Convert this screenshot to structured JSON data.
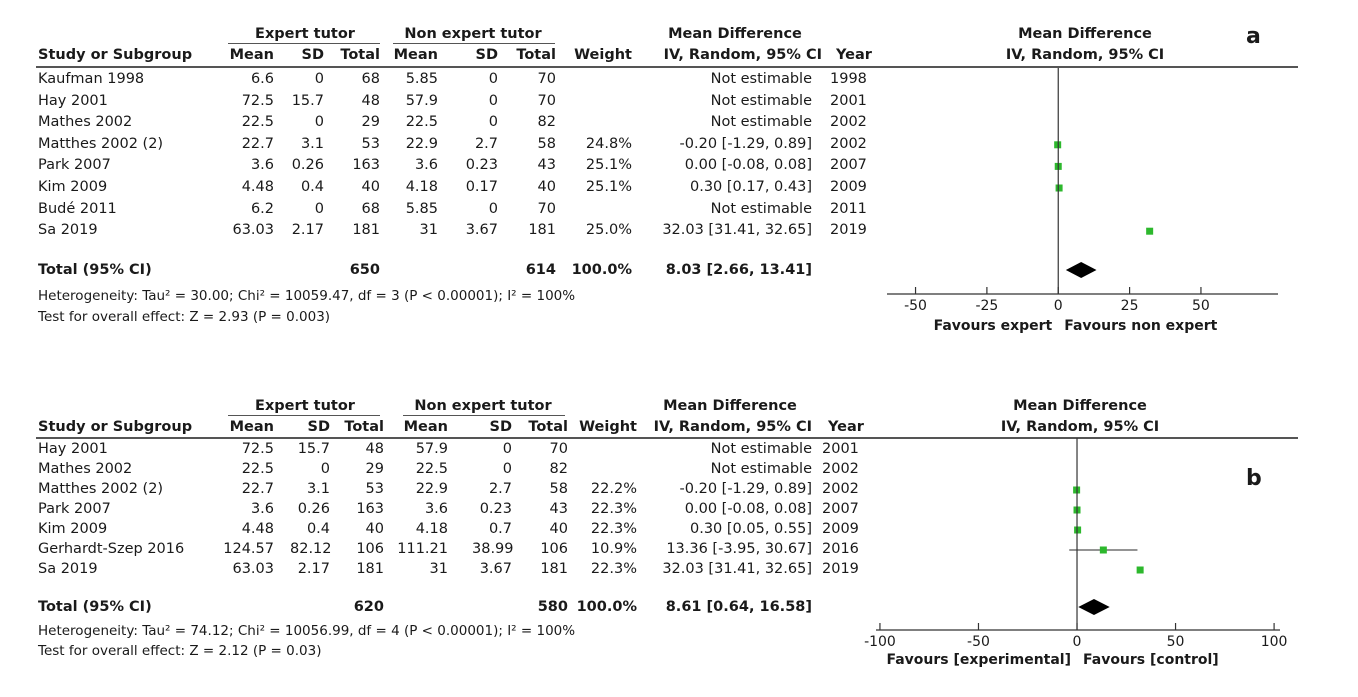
{
  "chart_data": [
    {
      "type": "forest",
      "panel_label": "a",
      "headers": {
        "group1": "Expert tutor",
        "group2": "Non expert tutor",
        "effect_title": "Mean Difference",
        "effect_sub": "IV, Random, 95% CI",
        "study": "Study or Subgroup",
        "mean": "Mean",
        "sd": "SD",
        "total": "Total",
        "weight": "Weight",
        "year": "Year",
        "plot_title": "Mean Difference",
        "plot_sub": "IV, Random, 95% CI"
      },
      "studies": [
        {
          "name": "Kaufman 1998",
          "mean1": "6.6",
          "sd1": "0",
          "n1": "68",
          "mean2": "5.85",
          "sd2": "0",
          "n2": "70",
          "weight": "",
          "ci": "Not estimable",
          "year": "1998",
          "md": null,
          "lo": null,
          "hi": null
        },
        {
          "name": "Hay 2001",
          "mean1": "72.5",
          "sd1": "15.7",
          "n1": "48",
          "mean2": "57.9",
          "sd2": "0",
          "n2": "70",
          "weight": "",
          "ci": "Not estimable",
          "year": "2001",
          "md": null,
          "lo": null,
          "hi": null
        },
        {
          "name": "Mathes 2002",
          "mean1": "22.5",
          "sd1": "0",
          "n1": "29",
          "mean2": "22.5",
          "sd2": "0",
          "n2": "82",
          "weight": "",
          "ci": "Not estimable",
          "year": "2002",
          "md": null,
          "lo": null,
          "hi": null
        },
        {
          "name": "Matthes 2002 (2)",
          "mean1": "22.7",
          "sd1": "3.1",
          "n1": "53",
          "mean2": "22.9",
          "sd2": "2.7",
          "n2": "58",
          "weight": "24.8%",
          "ci": "-0.20 [-1.29, 0.89]",
          "year": "2002",
          "md": -0.2,
          "lo": -1.29,
          "hi": 0.89
        },
        {
          "name": "Park 2007",
          "mean1": "3.6",
          "sd1": "0.26",
          "n1": "163",
          "mean2": "3.6",
          "sd2": "0.23",
          "n2": "43",
          "weight": "25.1%",
          "ci": "0.00 [-0.08, 0.08]",
          "year": "2007",
          "md": 0.0,
          "lo": -0.08,
          "hi": 0.08
        },
        {
          "name": "Kim 2009",
          "mean1": "4.48",
          "sd1": "0.4",
          "n1": "40",
          "mean2": "4.18",
          "sd2": "0.17",
          "n2": "40",
          "weight": "25.1%",
          "ci": "0.30 [0.17, 0.43]",
          "year": "2009",
          "md": 0.3,
          "lo": 0.17,
          "hi": 0.43
        },
        {
          "name": "Budé 2011",
          "mean1": "6.2",
          "sd1": "0",
          "n1": "68",
          "mean2": "5.85",
          "sd2": "0",
          "n2": "70",
          "weight": "",
          "ci": "Not estimable",
          "year": "2011",
          "md": null,
          "lo": null,
          "hi": null
        },
        {
          "name": "Sa 2019",
          "mean1": "63.03",
          "sd1": "2.17",
          "n1": "181",
          "mean2": "31",
          "sd2": "3.67",
          "n2": "181",
          "weight": "25.0%",
          "ci": "32.03 [31.41, 32.65]",
          "year": "2019",
          "md": 32.03,
          "lo": 31.41,
          "hi": 32.65
        }
      ],
      "total": {
        "label": "Total (95% CI)",
        "n1": "650",
        "n2": "614",
        "weight": "100.0%",
        "ci": "8.03 [2.66, 13.41]",
        "md": 8.03,
        "lo": 2.66,
        "hi": 13.41
      },
      "heterogeneity": "Heterogeneity: Tau² = 30.00; Chi² = 10059.47, df = 3 (P < 0.00001); I² = 100%",
      "overall_effect": "Test for overall effect: Z = 2.93 (P = 0.003)",
      "xlim": [
        -60,
        77
      ],
      "ticks": [
        {
          "v": -50,
          "label": "-50"
        },
        {
          "v": -25,
          "label": "-25"
        },
        {
          "v": 0,
          "label": "0"
        },
        {
          "v": 25,
          "label": "25"
        },
        {
          "v": 50,
          "label": "50"
        }
      ],
      "favours_left": "Favours expert",
      "favours_right": "Favours non expert",
      "marker_color": "#2db82d"
    },
    {
      "type": "forest",
      "panel_label": "b",
      "headers": {
        "group1": "Expert tutor",
        "group2": "Non expert tutor",
        "effect_title": "Mean Difference",
        "effect_sub": "IV, Random, 95% CI",
        "study": "Study or Subgroup",
        "mean": "Mean",
        "sd": "SD",
        "total": "Total",
        "weight": "Weight",
        "year": "Year",
        "plot_title": "Mean Difference",
        "plot_sub": "IV, Random, 95% CI"
      },
      "studies": [
        {
          "name": "Hay 2001",
          "mean1": "72.5",
          "sd1": "15.7",
          "n1": "48",
          "mean2": "57.9",
          "sd2": "0",
          "n2": "70",
          "weight": "",
          "ci": "Not estimable",
          "year": "2001",
          "md": null,
          "lo": null,
          "hi": null
        },
        {
          "name": "Mathes 2002",
          "mean1": "22.5",
          "sd1": "0",
          "n1": "29",
          "mean2": "22.5",
          "sd2": "0",
          "n2": "82",
          "weight": "",
          "ci": "Not estimable",
          "year": "2002",
          "md": null,
          "lo": null,
          "hi": null
        },
        {
          "name": "Matthes 2002 (2)",
          "mean1": "22.7",
          "sd1": "3.1",
          "n1": "53",
          "mean2": "22.9",
          "sd2": "2.7",
          "n2": "58",
          "weight": "22.2%",
          "ci": "-0.20 [-1.29, 0.89]",
          "year": "2002",
          "md": -0.2,
          "lo": -1.29,
          "hi": 0.89
        },
        {
          "name": "Park 2007",
          "mean1": "3.6",
          "sd1": "0.26",
          "n1": "163",
          "mean2": "3.6",
          "sd2": "0.23",
          "n2": "43",
          "weight": "22.3%",
          "ci": "0.00 [-0.08, 0.08]",
          "year": "2007",
          "md": 0.0,
          "lo": -0.08,
          "hi": 0.08
        },
        {
          "name": "Kim 2009",
          "mean1": "4.48",
          "sd1": "0.4",
          "n1": "40",
          "mean2": "4.18",
          "sd2": "0.7",
          "n2": "40",
          "weight": "22.3%",
          "ci": "0.30 [0.05, 0.55]",
          "year": "2009",
          "md": 0.3,
          "lo": 0.05,
          "hi": 0.55
        },
        {
          "name": "Gerhardt-Szep 2016",
          "mean1": "124.57",
          "sd1": "82.12",
          "n1": "106",
          "mean2": "111.21",
          "sd2": "38.99",
          "n2": "106",
          "weight": "10.9%",
          "ci": "13.36 [-3.95, 30.67]",
          "year": "2016",
          "md": 13.36,
          "lo": -3.95,
          "hi": 30.67
        },
        {
          "name": "Sa 2019",
          "mean1": "63.03",
          "sd1": "2.17",
          "n1": "181",
          "mean2": "31",
          "sd2": "3.67",
          "n2": "181",
          "weight": "22.3%",
          "ci": "32.03 [31.41, 32.65]",
          "year": "2019",
          "md": 32.03,
          "lo": 31.41,
          "hi": 32.65
        }
      ],
      "total": {
        "label": "Total (95% CI)",
        "n1": "620",
        "n2": "580",
        "weight": "100.0%",
        "ci": "8.61 [0.64, 16.58]",
        "md": 8.61,
        "lo": 0.64,
        "hi": 16.58
      },
      "heterogeneity": "Heterogeneity: Tau² = 74.12; Chi² = 10056.99, df = 4 (P < 0.00001); I² = 100%",
      "overall_effect": "Test for overall effect: Z = 2.12 (P = 0.03)",
      "xlim": [
        -102,
        103
      ],
      "ticks": [
        {
          "v": -100,
          "label": "-100"
        },
        {
          "v": -50,
          "label": "-50"
        },
        {
          "v": 0,
          "label": "0"
        },
        {
          "v": 50,
          "label": "50"
        },
        {
          "v": 100,
          "label": "100"
        }
      ],
      "favours_left": "Favours [experimental]",
      "favours_right": "Favours [control]",
      "marker_color": "#2db82d"
    }
  ]
}
